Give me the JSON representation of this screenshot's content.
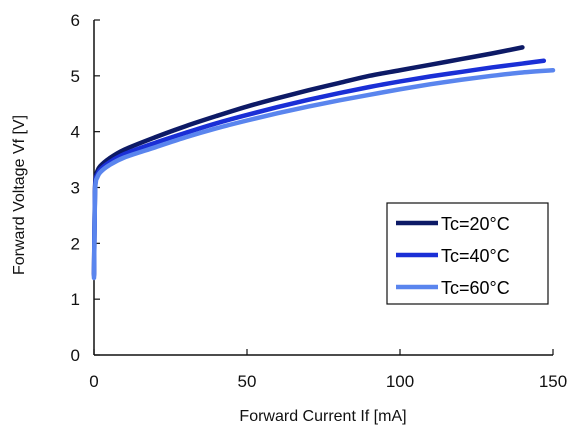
{
  "chart_data": {
    "type": "line",
    "title": "",
    "xlabel": "Forward Current If [mA]",
    "ylabel": "Forward Voltage  Vf [V]",
    "xlim": [
      0,
      150
    ],
    "ylim": [
      0,
      6
    ],
    "xticks": [
      0,
      50,
      100,
      150
    ],
    "yticks": [
      0,
      1,
      2,
      3,
      4,
      5,
      6
    ],
    "xtick_labels": [
      "0",
      "50",
      "100",
      "150"
    ],
    "ytick_labels": [
      "0",
      "1",
      "2",
      "3",
      "4",
      "5",
      "6"
    ],
    "grid": false,
    "legend_position": "bottom-right",
    "series": [
      {
        "name": "Tc=20°C",
        "color": "#0d1a66",
        "x": [
          0,
          0.3,
          0.6,
          1,
          2,
          5,
          10,
          20,
          30,
          40,
          50,
          60,
          70,
          80,
          90,
          100,
          110,
          120,
          130,
          140
        ],
        "y": [
          1.45,
          2.9,
          3.2,
          3.28,
          3.38,
          3.52,
          3.68,
          3.9,
          4.1,
          4.28,
          4.45,
          4.6,
          4.74,
          4.87,
          5.0,
          5.1,
          5.2,
          5.3,
          5.4,
          5.51
        ]
      },
      {
        "name": "Tc=40°C",
        "color": "#1a2fd6",
        "x": [
          0,
          0.3,
          0.6,
          1,
          2,
          5,
          10,
          20,
          30,
          40,
          50,
          60,
          70,
          80,
          90,
          100,
          110,
          120,
          130,
          140,
          147
        ],
        "y": [
          1.42,
          2.85,
          3.15,
          3.22,
          3.32,
          3.45,
          3.6,
          3.8,
          3.98,
          4.15,
          4.3,
          4.44,
          4.57,
          4.69,
          4.8,
          4.9,
          4.99,
          5.07,
          5.15,
          5.22,
          5.27
        ]
      },
      {
        "name": "Tc=60°C",
        "color": "#5a85ee",
        "x": [
          0,
          0.3,
          0.6,
          1,
          2,
          5,
          10,
          20,
          30,
          40,
          50,
          60,
          70,
          80,
          90,
          100,
          110,
          120,
          130,
          140,
          150
        ],
        "y": [
          1.38,
          2.8,
          3.1,
          3.17,
          3.27,
          3.4,
          3.54,
          3.72,
          3.9,
          4.06,
          4.2,
          4.33,
          4.45,
          4.56,
          4.66,
          4.76,
          4.85,
          4.93,
          5.0,
          5.06,
          5.1
        ]
      }
    ]
  }
}
